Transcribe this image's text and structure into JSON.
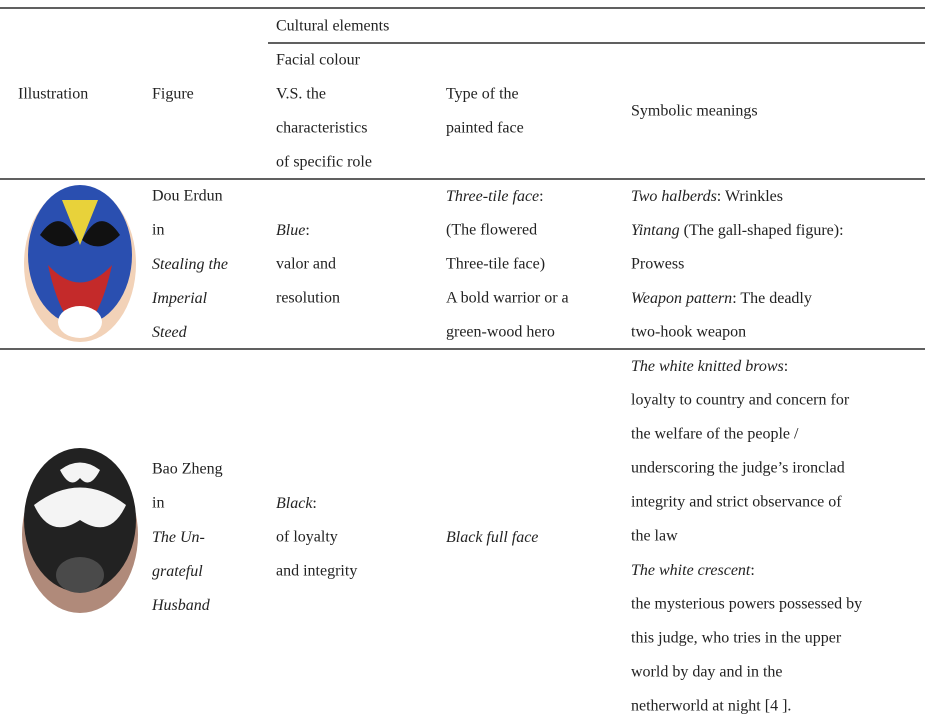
{
  "table": {
    "header": {
      "group": "Cultural elements",
      "columns": [
        [
          "Illustration"
        ],
        [
          "Figure"
        ],
        [
          "Facial colour",
          "V.S. the",
          "characteristics",
          "of specific role"
        ],
        [
          "Type of the",
          "painted face"
        ],
        [
          "Symbolic meanings"
        ]
      ]
    },
    "rows": [
      {
        "figure": [
          "Dou Erdun",
          "in",
          {
            "italic": "Stealing the"
          },
          {
            "italic": "Imperial"
          },
          {
            "italic": "Steed"
          }
        ],
        "facial": [
          {
            "italic": "Blue",
            "text": ":"
          },
          "valor and",
          "resolution"
        ],
        "type": [
          {
            "italic": "Three-tile face",
            "text": ":"
          },
          "(The flowered",
          "Three-tile face)",
          "A bold warrior or a",
          "green-wood hero"
        ],
        "symbolic": [
          {
            "italic": "Two halberds",
            "text": ": Wrinkles"
          },
          {
            "italic": "Yintang",
            "text": " (The gall-shaped figure):"
          },
          "Prowess",
          {
            "italic": "Weapon pattern",
            "text": ": The deadly"
          },
          "two-hook weapon"
        ]
      },
      {
        "figure": [
          "Bao Zheng",
          "in",
          {
            "italic": "The Un-"
          },
          {
            "italic": "grateful"
          },
          {
            "italic": "Husband"
          }
        ],
        "facial": [
          {
            "italic": "Black",
            "text": ":"
          },
          "of loyalty",
          "and integrity"
        ],
        "type": [
          {
            "italic": "Black full face"
          }
        ],
        "symbolic": [
          {
            "italic": "The white knitted brows",
            "text": ":"
          },
          "loyalty to country and concern for",
          "the welfare of the people /",
          "underscoring the judge’s ironclad",
          "integrity and strict observance of",
          "the law",
          {
            "italic": "The white crescent",
            "text": ":"
          },
          "the mysterious powers possessed by",
          "this judge, who tries in the upper",
          "world by day and in the",
          "netherworld at night [4 ]."
        ]
      }
    ]
  }
}
